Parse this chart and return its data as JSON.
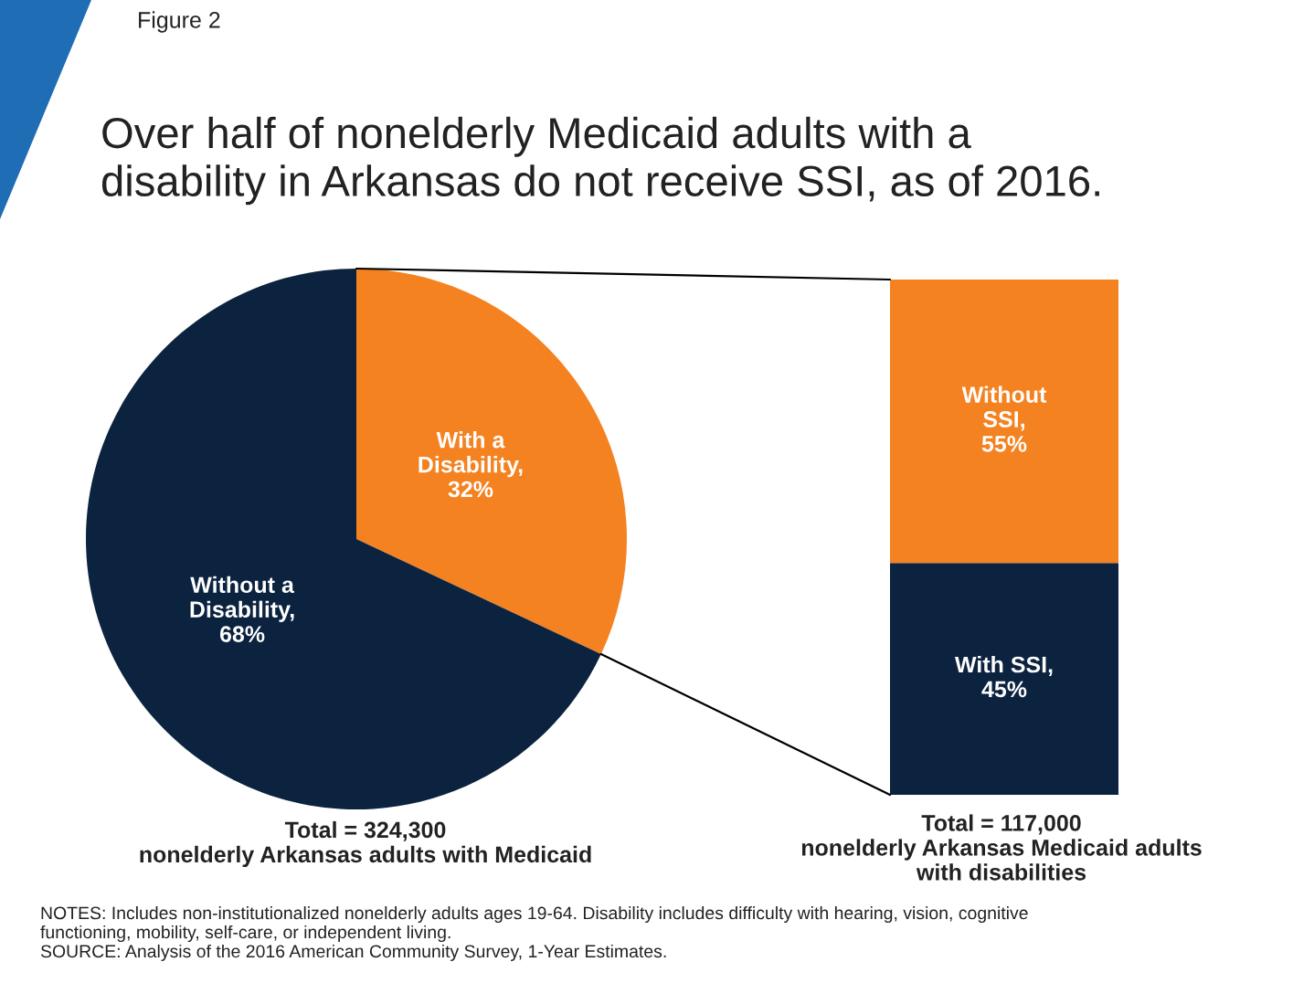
{
  "chart_data": [
    {
      "type": "pie",
      "subtitle": "Figure 2",
      "title": "Over half of nonelderly Medicaid adults with a\ndisability in Arkansas do not receive SSI, as of 2016.",
      "categories": [
        "With a\nDisability",
        "Without a\nDisability"
      ],
      "values": [
        32,
        68
      ],
      "colors": [
        "#f58220",
        "#0c2340"
      ],
      "value_labels": [
        ",\n32%",
        ",\n68%"
      ],
      "annotations": [
        "Total = 324,300\nnonelderly Arkansas adults with Medicaid",
        "NOTES: Includes non-institutionalized nonelderly adults ages 19-64. Disability includes difficulty with hearing, vision, cognitive\nfunctioning, mobility, self-care, or independent living.\nSOURCE: Analysis of the 2016 American Community Survey, 1-Year Estimates."
      ]
    },
    {
      "type": "bar",
      "stacked": true,
      "categories": [
        null
      ],
      "series": [
        {
          "name": "With SSI,",
          "color": "#0c2340",
          "values": [
            45
          ],
          "value_labels": [
            "45%"
          ]
        },
        {
          "name": "Without\nSSI,",
          "color": "#f58220",
          "values": [
            55
          ],
          "value_labels": [
            "55%"
          ]
        }
      ],
      "annotations": [
        "Total = 117,000\nnonelderly Arkansas Medicaid adults\nwith disabilities"
      ]
    }
  ]
}
